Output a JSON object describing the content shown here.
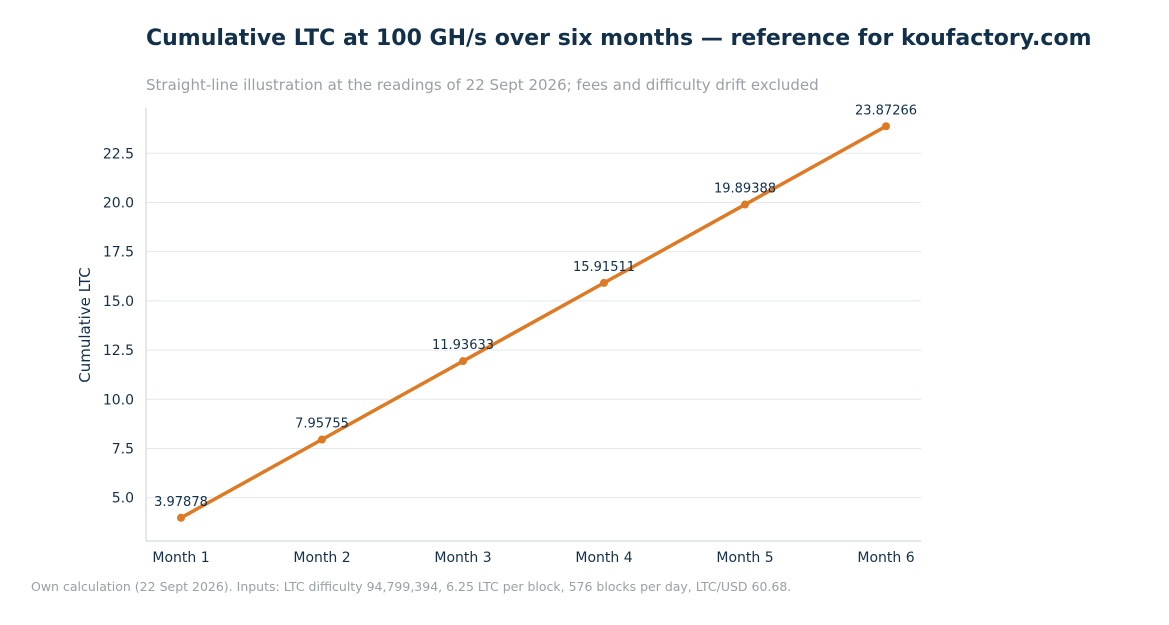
{
  "title": "Cumulative LTC at 100 GH/s over six months — reference for koufactory.com",
  "subtitle": "Straight-line illustration at the readings of 22 Sept 2026; fees and difficulty drift excluded",
  "footnote": "Own calculation (22 Sept 2026). Inputs: LTC difficulty 94,799,394, 6.25 LTC per block, 576 blocks per day, LTC/USD 60.68.",
  "colors": {
    "series": "#de7a26",
    "text": "#13304a",
    "muted": "#9aa0a6",
    "grid": "#e4e8ec",
    "axis": "#c9d0d6"
  },
  "chart_data": {
    "type": "line",
    "categories": [
      "Month 1",
      "Month 2",
      "Month 3",
      "Month 4",
      "Month 5",
      "Month 6"
    ],
    "series": [
      {
        "values": [
          3.97878,
          7.95755,
          11.93633,
          15.91511,
          19.89388,
          23.87266
        ],
        "labels": [
          "3.97878",
          "7.95755",
          "11.93633",
          "15.91511",
          "19.89388",
          "23.87266"
        ]
      }
    ],
    "xlabel": "",
    "ylabel": "Cumulative LTC",
    "ylim": [
      2.8,
      24.8
    ],
    "yticks": [
      5.0,
      7.5,
      10.0,
      12.5,
      15.0,
      17.5,
      20.0,
      22.5
    ],
    "ytick_labels": [
      "5.0",
      "7.5",
      "10.0",
      "12.5",
      "15.0",
      "17.5",
      "20.0",
      "22.5"
    ],
    "grid": "horizontal",
    "legend": "none"
  }
}
